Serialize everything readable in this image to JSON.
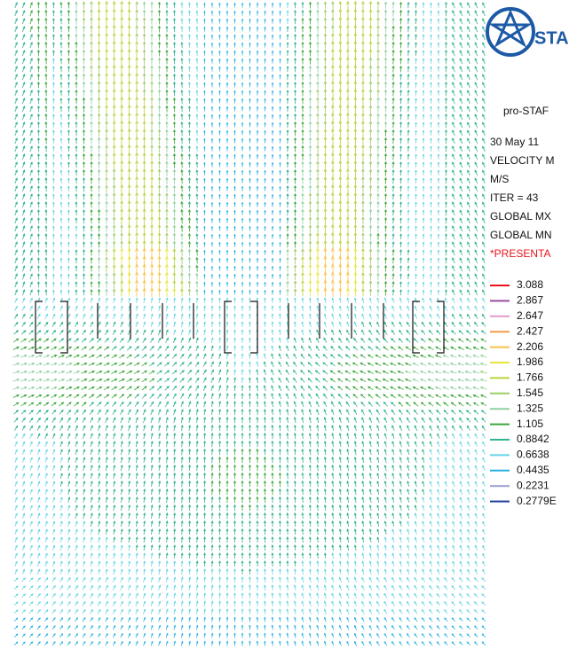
{
  "logo": {
    "text": "STA"
  },
  "header": {
    "title": "pro-STAF"
  },
  "info": {
    "lines": [
      "30 May 11",
      "VELOCITY M",
      "M/S",
      "ITER =    43",
      "GLOBAL MX",
      "GLOBAL MN"
    ],
    "notice": "*PRESENTA"
  },
  "legend": {
    "items": [
      {
        "label": "3.088",
        "color": "#e8141c"
      },
      {
        "label": "2.867",
        "color": "#9c4ea0"
      },
      {
        "label": "2.647",
        "color": "#e39ad0"
      },
      {
        "label": "2.427",
        "color": "#f59a4a"
      },
      {
        "label": "2.206",
        "color": "#f7c24a"
      },
      {
        "label": "1.986",
        "color": "#e6e63a"
      },
      {
        "label": "1.766",
        "color": "#b8d43c"
      },
      {
        "label": "1.545",
        "color": "#9ccc6a"
      },
      {
        "label": "1.325",
        "color": "#90d0a0"
      },
      {
        "label": "1.105",
        "color": "#3aa83a"
      },
      {
        "label": "0.8842",
        "color": "#2fb390"
      },
      {
        "label": "0.6638",
        "color": "#66d4e6"
      },
      {
        "label": "0.4435",
        "color": "#25b0e4"
      },
      {
        "label": "0.2231",
        "color": "#9a9ad0"
      },
      {
        "label": "0.2779E",
        "color": "#1a3a9a"
      }
    ]
  }
}
